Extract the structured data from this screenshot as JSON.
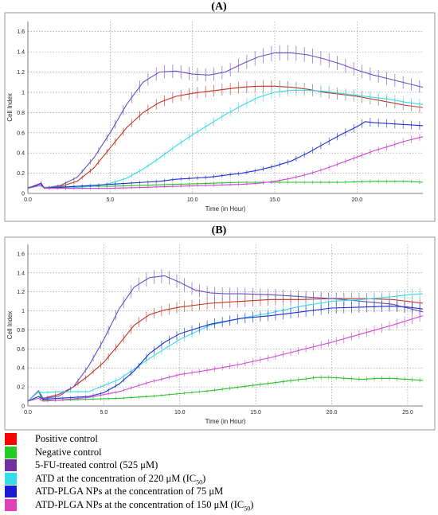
{
  "chart_data": [
    {
      "type": "line",
      "panel_label": "(A)",
      "xlabel": "Time (in Hour)",
      "ylabel": "Cell Index",
      "xlim": [
        0,
        24
      ],
      "ylim": [
        0,
        1.7
      ],
      "xticks": [
        "0.0",
        "5.0",
        "10.0",
        "15.0",
        "20.0"
      ],
      "xtick_values": [
        0,
        5,
        10,
        15,
        20
      ],
      "yticks": [
        "0",
        "0.2",
        "0.4",
        "0.6",
        "0.8",
        "1",
        "1.2",
        "1.4",
        "1.6"
      ],
      "ytick_values": [
        0,
        0.2,
        0.4,
        0.6,
        0.8,
        1.0,
        1.2,
        1.4,
        1.6
      ],
      "grid": true,
      "series": [
        {
          "color": "#c1321f",
          "x": [
            0,
            0.8,
            1,
            2,
            3,
            4,
            5,
            6,
            7,
            8,
            9,
            10,
            11,
            12,
            13,
            14,
            15,
            16,
            17,
            18,
            19,
            20,
            21,
            22,
            23,
            24
          ],
          "y": [
            0.05,
            0.1,
            0.05,
            0.07,
            0.12,
            0.25,
            0.45,
            0.65,
            0.8,
            0.9,
            0.96,
            0.99,
            1.01,
            1.03,
            1.05,
            1.06,
            1.06,
            1.05,
            1.03,
            1.0,
            0.98,
            0.96,
            0.93,
            0.9,
            0.87,
            0.85
          ]
        },
        {
          "color": "#27c127",
          "x": [
            0,
            0.8,
            1,
            3,
            5,
            7,
            9,
            11,
            13,
            15,
            17,
            19,
            21,
            23,
            24
          ],
          "y": [
            0.06,
            0.08,
            0.06,
            0.07,
            0.07,
            0.08,
            0.09,
            0.1,
            0.11,
            0.11,
            0.11,
            0.11,
            0.12,
            0.12,
            0.11
          ]
        },
        {
          "color": "#6a4fbf",
          "x": [
            0,
            0.8,
            1,
            2,
            3,
            4,
            5,
            6,
            7,
            8,
            9,
            10,
            11,
            12,
            13,
            14,
            15,
            16,
            17,
            18,
            19,
            20,
            21,
            22,
            23,
            24
          ],
          "y": [
            0.05,
            0.1,
            0.05,
            0.08,
            0.16,
            0.35,
            0.6,
            0.88,
            1.1,
            1.2,
            1.21,
            1.18,
            1.17,
            1.2,
            1.28,
            1.35,
            1.39,
            1.39,
            1.37,
            1.33,
            1.28,
            1.22,
            1.17,
            1.13,
            1.09,
            1.05
          ]
        },
        {
          "color": "#3cd8e8",
          "x": [
            0,
            0.8,
            1,
            2,
            3,
            4,
            5,
            6,
            7,
            8,
            9,
            10,
            11,
            12,
            13,
            14,
            15,
            16,
            17,
            18,
            19,
            20,
            21,
            22,
            23,
            24
          ],
          "y": [
            0.05,
            0.08,
            0.05,
            0.05,
            0.06,
            0.07,
            0.1,
            0.15,
            0.24,
            0.35,
            0.47,
            0.58,
            0.68,
            0.78,
            0.87,
            0.95,
            1.0,
            1.02,
            1.02,
            1.01,
            0.99,
            0.97,
            0.95,
            0.93,
            0.9,
            0.88
          ]
        },
        {
          "color": "#1c2fd0",
          "x": [
            0,
            0.8,
            1,
            2,
            3,
            4,
            5,
            6,
            7,
            8,
            9,
            10,
            11,
            12,
            13,
            14,
            15,
            16,
            17,
            18,
            19,
            20,
            20.5,
            21,
            22,
            23,
            24
          ],
          "y": [
            0.05,
            0.1,
            0.05,
            0.06,
            0.07,
            0.08,
            0.09,
            0.1,
            0.11,
            0.12,
            0.14,
            0.15,
            0.16,
            0.18,
            0.2,
            0.23,
            0.27,
            0.32,
            0.4,
            0.49,
            0.58,
            0.66,
            0.71,
            0.7,
            0.69,
            0.68,
            0.67
          ]
        },
        {
          "color": "#cf45d3",
          "x": [
            0,
            0.8,
            1,
            3,
            5,
            7,
            9,
            11,
            13,
            14,
            15,
            16,
            17,
            18,
            19,
            20,
            21,
            22,
            23,
            24
          ],
          "y": [
            0.05,
            0.08,
            0.05,
            0.05,
            0.05,
            0.06,
            0.07,
            0.08,
            0.09,
            0.1,
            0.12,
            0.15,
            0.19,
            0.24,
            0.3,
            0.36,
            0.42,
            0.47,
            0.52,
            0.56
          ]
        }
      ]
    },
    {
      "type": "line",
      "panel_label": "(B)",
      "xlabel": "Time (in Hour)",
      "ylabel": "Cell Index",
      "xlim": [
        0,
        26
      ],
      "ylim": [
        0,
        1.7
      ],
      "xticks": [
        "0.0",
        "5.0",
        "10.0",
        "15.0",
        "20.0",
        "25.0"
      ],
      "xtick_values": [
        0,
        5,
        10,
        15,
        20,
        25
      ],
      "yticks": [
        "0",
        "0.2",
        "0.4",
        "0.6",
        "0.8",
        "1",
        "1.2",
        "1.4",
        "1.6"
      ],
      "ytick_values": [
        0,
        0.2,
        0.4,
        0.6,
        0.8,
        1.0,
        1.2,
        1.4,
        1.6
      ],
      "grid": true,
      "series": [
        {
          "color": "#c1321f",
          "x": [
            0,
            0.7,
            1,
            2,
            3,
            4,
            5,
            6,
            7,
            8,
            9,
            10,
            12,
            14,
            16,
            18,
            20,
            22,
            24,
            25,
            26
          ],
          "y": [
            0.05,
            0.15,
            0.08,
            0.12,
            0.2,
            0.32,
            0.46,
            0.65,
            0.85,
            0.96,
            1.01,
            1.04,
            1.08,
            1.1,
            1.12,
            1.12,
            1.13,
            1.13,
            1.12,
            1.1,
            1.08
          ]
        },
        {
          "color": "#27c127",
          "x": [
            0,
            0.7,
            1,
            2,
            4,
            6,
            8,
            10,
            12,
            14,
            16,
            18,
            19,
            20,
            21,
            22,
            23,
            24,
            25,
            26
          ],
          "y": [
            0.05,
            0.15,
            0.06,
            0.06,
            0.07,
            0.08,
            0.1,
            0.13,
            0.16,
            0.2,
            0.24,
            0.28,
            0.3,
            0.3,
            0.29,
            0.28,
            0.29,
            0.29,
            0.28,
            0.27
          ]
        },
        {
          "color": "#6a4fbf",
          "x": [
            0,
            0.7,
            1,
            2,
            3,
            4,
            5,
            6,
            7,
            8,
            9,
            10,
            11,
            12,
            13,
            14,
            16,
            18,
            20,
            22,
            24,
            25,
            26
          ],
          "y": [
            0.05,
            0.16,
            0.08,
            0.1,
            0.2,
            0.42,
            0.7,
            1.02,
            1.25,
            1.35,
            1.37,
            1.3,
            1.22,
            1.19,
            1.18,
            1.18,
            1.17,
            1.15,
            1.13,
            1.1,
            1.07,
            1.03,
            0.99
          ]
        },
        {
          "color": "#3cd8e8",
          "x": [
            0,
            0.7,
            1,
            2,
            4,
            6,
            8,
            10,
            12,
            14,
            16,
            18,
            20,
            22,
            24,
            25,
            26
          ],
          "y": [
            0.05,
            0.15,
            0.14,
            0.15,
            0.15,
            0.28,
            0.5,
            0.7,
            0.85,
            0.92,
            0.98,
            1.05,
            1.1,
            1.12,
            1.15,
            1.17,
            1.18
          ]
        },
        {
          "color": "#1c2fd0",
          "x": [
            0,
            0.7,
            1,
            2,
            3,
            4,
            5,
            6,
            7,
            8,
            9,
            10,
            12,
            14,
            16,
            18,
            20,
            22,
            24,
            25,
            26
          ],
          "y": [
            0.05,
            0.1,
            0.07,
            0.08,
            0.09,
            0.1,
            0.14,
            0.23,
            0.37,
            0.55,
            0.67,
            0.76,
            0.86,
            0.92,
            0.95,
            0.99,
            1.03,
            1.04,
            1.05,
            1.04,
            1.02
          ]
        },
        {
          "color": "#cf45d3",
          "x": [
            0,
            0.7,
            1,
            2,
            4,
            6,
            8,
            10,
            12,
            14,
            16,
            18,
            20,
            22,
            24,
            25,
            26
          ],
          "y": [
            0.05,
            0.08,
            0.05,
            0.06,
            0.09,
            0.15,
            0.25,
            0.33,
            0.38,
            0.44,
            0.51,
            0.59,
            0.67,
            0.76,
            0.85,
            0.9,
            0.95
          ]
        }
      ]
    }
  ],
  "legend": [
    {
      "color": "#ff0000",
      "label": "Positive control"
    },
    {
      "color": "#22cc22",
      "label": "Negative control"
    },
    {
      "color": "#7030a0",
      "label": "5-FU-treated control (525 μM)"
    },
    {
      "color": "#33ddee",
      "label": "ATD at the concentration of 220 μM (IC",
      "sub": "50",
      "tail": ")"
    },
    {
      "color": "#1a1ad6",
      "label": "ATD-PLGA NPs at the concentration of 75 μM"
    },
    {
      "color": "#e040b8",
      "label": "ATD-PLGA NPs at the concentration of 150 μM (IC",
      "sub": "50",
      "tail": ")"
    }
  ]
}
